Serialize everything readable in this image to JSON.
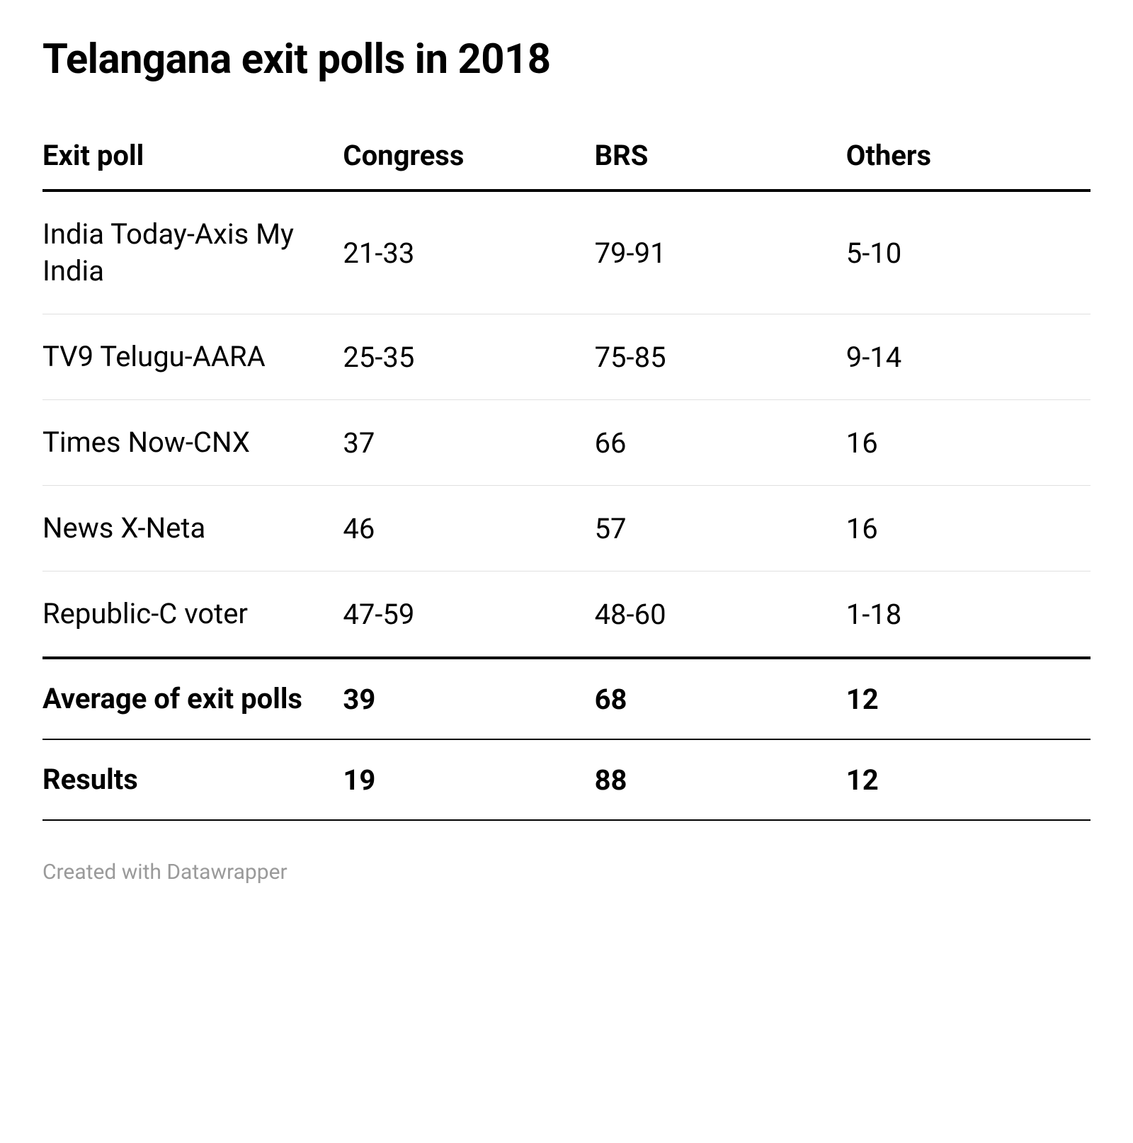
{
  "title": "Telangana exit polls in 2018",
  "table": {
    "type": "table",
    "columns": [
      "Exit poll",
      "Congress",
      "BRS",
      "Others"
    ],
    "rows": [
      {
        "poll": "India Today-Axis My India",
        "congress": "21-33",
        "brs": "79-91",
        "others": "5-10",
        "bold": false
      },
      {
        "poll": "TV9 Telugu-AARA",
        "congress": "25-35",
        "brs": "75-85",
        "others": "9-14",
        "bold": false
      },
      {
        "poll": "Times Now-CNX",
        "congress": "37",
        "brs": "66",
        "others": "16",
        "bold": false
      },
      {
        "poll": "News X-Neta",
        "congress": "46",
        "brs": "57",
        "others": "16",
        "bold": false
      },
      {
        "poll": "Republic-C voter",
        "congress": "47-59",
        "brs": "48-60",
        "others": "1-18",
        "bold": false
      },
      {
        "poll": "Average of exit polls",
        "congress": "39",
        "brs": "68",
        "others": "12",
        "bold": true
      },
      {
        "poll": "Results",
        "congress": "19",
        "brs": "88",
        "others": "12",
        "bold": true
      }
    ],
    "colors": {
      "text": "#000000",
      "background": "#ffffff",
      "row_border": "#e0e0e0",
      "strong_border": "#000000",
      "footer_text": "#9a9a9a"
    },
    "font": {
      "title_size_pt": 44,
      "header_size_pt": 30,
      "cell_size_pt": 30,
      "footer_size_pt": 22,
      "header_weight": 700,
      "cell_weight": 400,
      "bold_weight": 700
    },
    "column_widths_pct": [
      28,
      24,
      24,
      24
    ]
  },
  "footer": "Created with Datawrapper"
}
